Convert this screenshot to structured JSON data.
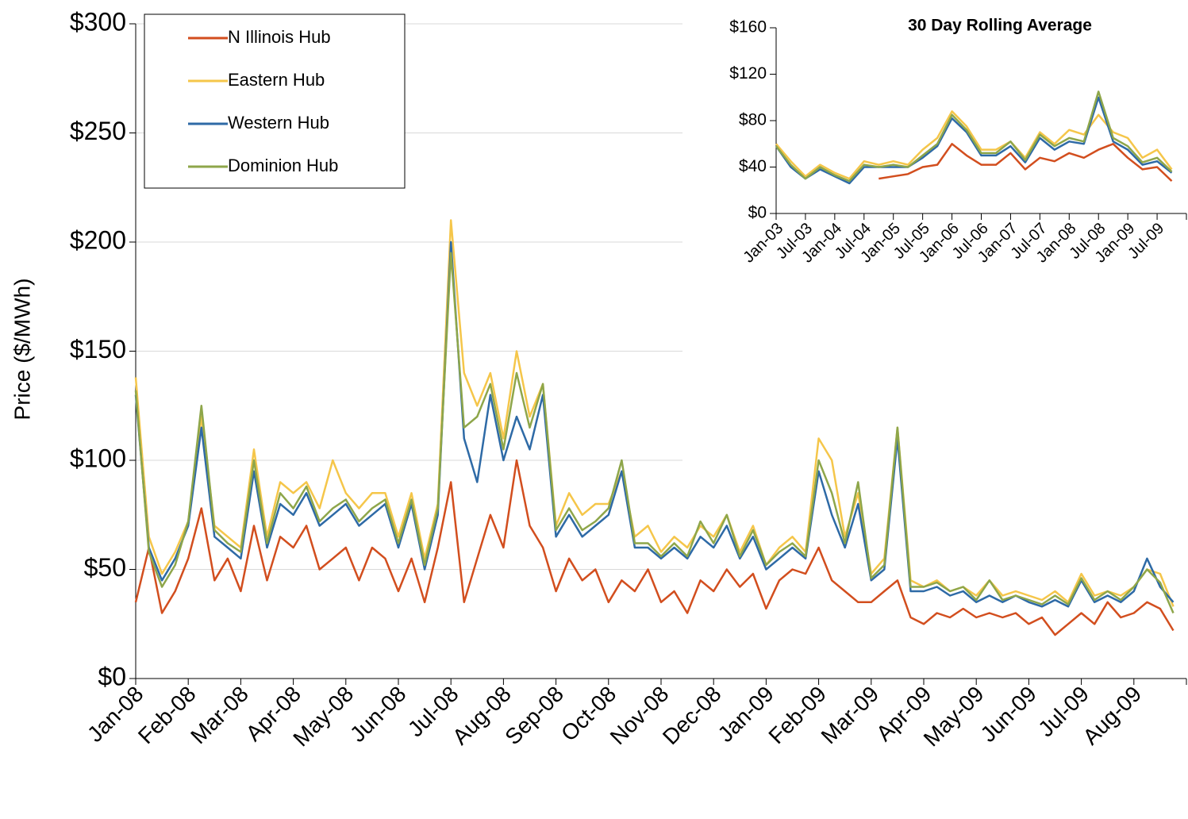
{
  "chart_data": [
    {
      "type": "line",
      "y_label": "Price ($/MWh)",
      "categories": [
        "Jan-08",
        null,
        null,
        null,
        "Feb-08",
        null,
        null,
        null,
        "Mar-08",
        null,
        null,
        null,
        "Apr-08",
        null,
        null,
        null,
        "May-08",
        null,
        null,
        null,
        "Jun-08",
        null,
        null,
        null,
        "Jul-08",
        null,
        null,
        null,
        "Aug-08",
        null,
        null,
        null,
        "Sep-08",
        null,
        null,
        null,
        "Oct-08",
        null,
        null,
        null,
        "Nov-08",
        null,
        null,
        null,
        "Dec-08",
        null,
        null,
        null,
        "Jan-09",
        null,
        null,
        null,
        "Feb-09",
        null,
        null,
        null,
        "Mar-09",
        null,
        null,
        null,
        "Apr-09",
        null,
        null,
        null,
        "May-09",
        null,
        null,
        null,
        "Jun-09",
        null,
        null,
        null,
        "Jul-09",
        null,
        null,
        null,
        "Aug-09",
        null,
        null,
        null
      ],
      "series": [
        {
          "name": "N Illinois Hub",
          "color": "#d24e1e",
          "values": [
            35,
            60,
            30,
            40,
            55,
            78,
            45,
            55,
            40,
            70,
            45,
            65,
            60,
            70,
            50,
            55,
            60,
            45,
            60,
            55,
            40,
            55,
            35,
            60,
            90,
            35,
            55,
            75,
            60,
            100,
            70,
            60,
            40,
            55,
            45,
            50,
            35,
            45,
            40,
            50,
            35,
            40,
            30,
            45,
            40,
            50,
            42,
            48,
            32,
            45,
            50,
            48,
            60,
            45,
            40,
            35,
            35,
            40,
            45,
            28,
            25,
            30,
            28,
            32,
            28,
            30,
            28,
            30,
            25,
            28,
            20,
            25,
            30,
            25,
            35,
            28,
            30,
            35,
            32,
            22
          ]
        },
        {
          "name": "Eastern Hub",
          "color": "#f5c64a",
          "values": [
            138,
            65,
            48,
            58,
            72,
            120,
            70,
            65,
            60,
            105,
            65,
            90,
            85,
            90,
            78,
            100,
            85,
            78,
            85,
            85,
            65,
            85,
            55,
            80,
            210,
            140,
            125,
            140,
            110,
            150,
            120,
            135,
            70,
            85,
            75,
            80,
            80,
            95,
            65,
            70,
            58,
            65,
            60,
            70,
            65,
            75,
            58,
            70,
            52,
            60,
            65,
            58,
            110,
            100,
            65,
            85,
            48,
            55,
            115,
            45,
            42,
            45,
            40,
            42,
            38,
            45,
            38,
            40,
            38,
            36,
            40,
            35,
            48,
            38,
            40,
            38,
            42,
            50,
            48,
            33
          ]
        },
        {
          "name": "Western Hub",
          "color": "#2e6aa6",
          "values": [
            130,
            60,
            45,
            55,
            70,
            115,
            65,
            60,
            55,
            95,
            60,
            80,
            75,
            85,
            70,
            75,
            80,
            70,
            75,
            80,
            60,
            80,
            50,
            75,
            200,
            110,
            90,
            130,
            100,
            120,
            105,
            130,
            65,
            75,
            65,
            70,
            75,
            95,
            60,
            60,
            55,
            60,
            55,
            65,
            60,
            70,
            55,
            65,
            50,
            55,
            60,
            55,
            95,
            75,
            60,
            80,
            45,
            50,
            110,
            40,
            40,
            42,
            38,
            40,
            35,
            38,
            35,
            38,
            35,
            33,
            36,
            33,
            45,
            35,
            38,
            35,
            40,
            55,
            42,
            35
          ]
        },
        {
          "name": "Dominion Hub",
          "color": "#8ea64a",
          "values": [
            132,
            58,
            42,
            52,
            72,
            125,
            68,
            62,
            58,
            100,
            62,
            85,
            78,
            88,
            72,
            78,
            82,
            72,
            78,
            82,
            62,
            82,
            52,
            78,
            195,
            115,
            120,
            135,
            105,
            140,
            115,
            135,
            68,
            78,
            68,
            72,
            78,
            100,
            62,
            62,
            56,
            62,
            56,
            72,
            62,
            75,
            56,
            68,
            52,
            58,
            62,
            56,
            100,
            85,
            62,
            90,
            46,
            52,
            115,
            42,
            42,
            44,
            40,
            42,
            36,
            45,
            36,
            38,
            36,
            34,
            38,
            34,
            46,
            36,
            40,
            36,
            42,
            50,
            44,
            30
          ]
        }
      ],
      "ylim": [
        0,
        300
      ],
      "yticks": [
        {
          "value": 0,
          "label": "$0"
        },
        {
          "value": 50,
          "label": "$50"
        },
        {
          "value": 100,
          "label": "$100"
        },
        {
          "value": 150,
          "label": "$150"
        },
        {
          "value": 200,
          "label": "$200"
        },
        {
          "value": 250,
          "label": "$250"
        },
        {
          "value": 300,
          "label": "$300"
        }
      ],
      "grid": true,
      "legend": "upper left"
    },
    {
      "type": "line",
      "title": "30 Day Rolling Average",
      "categories": [
        "Jan-03",
        null,
        "Jul-03",
        null,
        "Jan-04",
        null,
        "Jul-04",
        null,
        "Jan-05",
        null,
        "Jul-05",
        null,
        "Jan-06",
        null,
        "Jul-06",
        null,
        "Jan-07",
        null,
        "Jul-07",
        null,
        "Jan-08",
        null,
        "Jul-08",
        null,
        "Jan-09",
        null,
        "Jul-09",
        null
      ],
      "series": [
        {
          "name": "N Illinois Hub",
          "color": "#d24e1e",
          "values": [
            null,
            null,
            null,
            null,
            null,
            null,
            null,
            30,
            32,
            34,
            40,
            42,
            60,
            50,
            42,
            42,
            52,
            38,
            48,
            45,
            52,
            48,
            55,
            60,
            48,
            38,
            40,
            28
          ]
        },
        {
          "name": "Eastern Hub",
          "color": "#f5c64a",
          "values": [
            60,
            45,
            32,
            42,
            35,
            30,
            45,
            42,
            45,
            42,
            55,
            65,
            88,
            75,
            55,
            55,
            62,
            48,
            70,
            60,
            72,
            68,
            85,
            70,
            65,
            48,
            55,
            38
          ]
        },
        {
          "name": "Western Hub",
          "color": "#2e6aa6",
          "values": [
            58,
            40,
            30,
            38,
            32,
            26,
            40,
            40,
            40,
            40,
            48,
            58,
            82,
            70,
            50,
            50,
            58,
            44,
            65,
            55,
            62,
            60,
            100,
            62,
            55,
            42,
            45,
            35
          ]
        },
        {
          "name": "Dominion Hub",
          "color": "#8ea64a",
          "values": [
            58,
            42,
            30,
            40,
            33,
            28,
            42,
            40,
            42,
            40,
            50,
            60,
            85,
            72,
            52,
            52,
            62,
            46,
            68,
            58,
            65,
            62,
            105,
            65,
            58,
            44,
            48,
            36
          ]
        }
      ],
      "ylim": [
        0,
        160
      ],
      "yticks": [
        {
          "value": 0,
          "label": "$0"
        },
        {
          "value": 40,
          "label": "$40"
        },
        {
          "value": 80,
          "label": "$80"
        },
        {
          "value": 120,
          "label": "$120"
        },
        {
          "value": 160,
          "label": "$160"
        }
      ],
      "grid": false
    }
  ]
}
